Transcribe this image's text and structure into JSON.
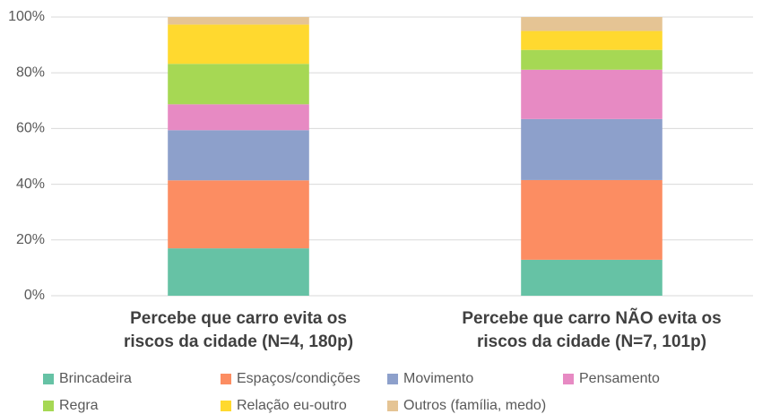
{
  "chart_data": {
    "type": "stacked_bar",
    "categories": [
      "Percebe que carro evita os riscos da cidade (N=4, 180p)",
      "Percebe que carro NÃO evita os riscos da cidade (N=7, 101p)"
    ],
    "series": [
      {
        "name": "Brincadeira",
        "color": "#66c2a5",
        "values": [
          17.0,
          12.9
        ]
      },
      {
        "name": "Espaços/condições",
        "color": "#fc8d62",
        "values": [
          24.4,
          28.6
        ]
      },
      {
        "name": "Movimento",
        "color": "#8da0cb",
        "values": [
          18.0,
          21.9
        ]
      },
      {
        "name": "Pensamento",
        "color": "#e78ac3",
        "values": [
          9.3,
          17.7
        ]
      },
      {
        "name": "Regra",
        "color": "#a6d854",
        "values": [
          14.5,
          7.1
        ]
      },
      {
        "name": "Relação eu-outro",
        "color": "#ffd92f",
        "values": [
          14.1,
          6.8
        ]
      },
      {
        "name": "Outros (família, medo)",
        "color": "#e5c494",
        "values": [
          2.7,
          5.0
        ]
      }
    ],
    "ylim": [
      0,
      100
    ],
    "yticks": [
      {
        "value": 0,
        "label": "0%"
      },
      {
        "value": 20,
        "label": "20%"
      },
      {
        "value": 40,
        "label": "40%"
      },
      {
        "value": 60,
        "label": "60%"
      },
      {
        "value": 80,
        "label": "80%"
      },
      {
        "value": 100,
        "label": "100%"
      }
    ],
    "grid": true
  }
}
